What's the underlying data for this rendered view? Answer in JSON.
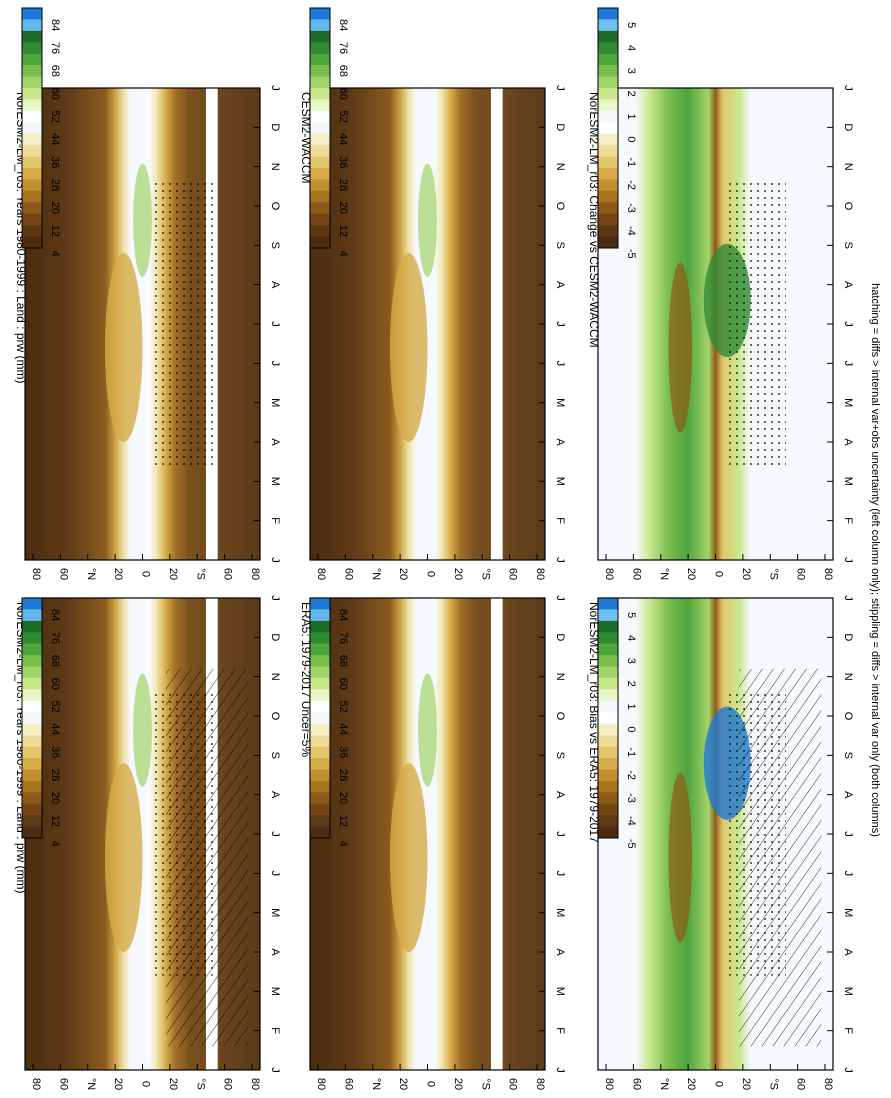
{
  "footnote": "hatching = diffs > internal var+obs uncertainty (left column only); stippling = diffs > internal var only (both columns)",
  "month_labels": [
    "J",
    "F",
    "M",
    "A",
    "M",
    "J",
    "J",
    "A",
    "S",
    "O",
    "N",
    "D",
    "J"
  ],
  "lat_labels": [
    "80",
    "60",
    "°N",
    "20",
    "0",
    "20",
    "°S",
    "60",
    "80"
  ],
  "abs_colorbar": {
    "labels": [
      "84",
      "76",
      "68",
      "60",
      "52",
      "44",
      "36",
      "28",
      "20",
      "12",
      "4"
    ],
    "colors": [
      "#1f78d1",
      "#62b8ee",
      "#1f6b2a",
      "#2f8a34",
      "#4fa43c",
      "#79bd4e",
      "#a3d46a",
      "#c9e88e",
      "#e9f6c6",
      "#ffffff",
      "#f4f8fd",
      "#f5efc4",
      "#eedd9a",
      "#e3c56d",
      "#d6ab48",
      "#c18f2e",
      "#a8721f",
      "#8e5a18",
      "#744615",
      "#5e3812",
      "#4a2c10"
    ]
  },
  "diff_colorbar": {
    "labels": [
      "5",
      "4",
      "3",
      "2",
      "1",
      "0",
      "-1",
      "-2",
      "-3",
      "-4",
      "-5"
    ],
    "colors": [
      "#1f78d1",
      "#6ec1f0",
      "#1f6b2a",
      "#2f8a34",
      "#4fa43c",
      "#79bd4e",
      "#a3d46a",
      "#c9e88e",
      "#e9f6c6",
      "#f4f8fd",
      "#ffffff",
      "#f5efc4",
      "#eedd9a",
      "#e3c56d",
      "#d6ab48",
      "#c18f2e",
      "#a8721f",
      "#8e5a18",
      "#744615",
      "#5e3812",
      "#4a2c10"
    ]
  },
  "chart_data": [
    {
      "type": "heatmap",
      "title": "NorESM2-LM_r03: Years 1980-1999 : Land : prw (mm)",
      "x": "month",
      "y": "latitude",
      "field": "model climatology",
      "hatching": true,
      "stippling": true
    },
    {
      "type": "heatmap",
      "title": "ERA5: 1979-2017 Uncer=5%",
      "x": "month",
      "y": "latitude",
      "field": "observations"
    },
    {
      "type": "heatmap",
      "title": "NorESM2-LM_r03: Bias vs ERA5: 1979-2017",
      "x": "month",
      "y": "latitude",
      "field": "bias",
      "hatching": true,
      "stippling": true
    },
    {
      "type": "heatmap",
      "title": "NorESM2-LM_r03: Years 1980-1999 : Land : prw (mm)",
      "x": "month",
      "y": "latitude",
      "field": "model climatology",
      "stippling": true
    },
    {
      "type": "heatmap",
      "title": "CESM2-WACCM",
      "x": "month",
      "y": "latitude",
      "field": "reference model"
    },
    {
      "type": "heatmap",
      "title": "NorESM2-LM_r03: Change vs CESM2-WACCM",
      "x": "month",
      "y": "latitude",
      "field": "change",
      "stippling": true
    }
  ]
}
